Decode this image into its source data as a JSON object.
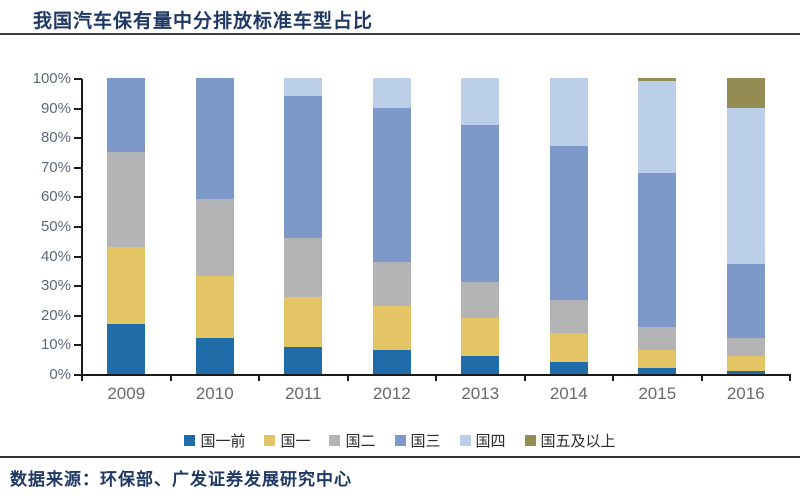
{
  "header": {
    "title": "我国汽车保有量中分排放标准车型占比"
  },
  "footer": {
    "source": "数据来源：环保部、广发证券发展研究中心"
  },
  "colors": {
    "title_text": "#1F3864",
    "axis_line": "#1a1a1a",
    "y_label_text": "#5d6878",
    "x_label_text": "#696969",
    "rule_line": "#3d3d3d"
  },
  "chart_data": {
    "type": "bar",
    "stacked": true,
    "title": "我国汽车保有量中分排放标准车型占比",
    "xlabel": "",
    "ylabel": "",
    "ylim": [
      0,
      100
    ],
    "grid": false,
    "legend_position": "bottom",
    "categories": [
      "2009",
      "2010",
      "2011",
      "2012",
      "2013",
      "2014",
      "2015",
      "2016"
    ],
    "ytick_labels": [
      "0%",
      "10%",
      "20%",
      "30%",
      "40%",
      "50%",
      "60%",
      "70%",
      "80%",
      "90%",
      "100%"
    ],
    "series": [
      {
        "name": "国一前",
        "color": "#1F6CA9",
        "values": [
          17,
          12,
          9,
          8,
          6,
          4,
          2,
          1
        ]
      },
      {
        "name": "国一",
        "color": "#E3C566",
        "values": [
          26,
          21,
          17,
          15,
          13,
          10,
          6,
          5
        ]
      },
      {
        "name": "国二",
        "color": "#B4B4B6",
        "values": [
          32,
          26,
          20,
          15,
          12,
          11,
          8,
          6
        ]
      },
      {
        "name": "国三",
        "color": "#7D99C9",
        "values": [
          25,
          41,
          48,
          52,
          53,
          52,
          52,
          25
        ]
      },
      {
        "name": "国四",
        "color": "#BCCFE8",
        "values": [
          0,
          0,
          6,
          10,
          16,
          23,
          31,
          53
        ]
      },
      {
        "name": "国五及以上",
        "color": "#958C54",
        "values": [
          0,
          0,
          0,
          0,
          0,
          0,
          1,
          10
        ]
      }
    ]
  }
}
